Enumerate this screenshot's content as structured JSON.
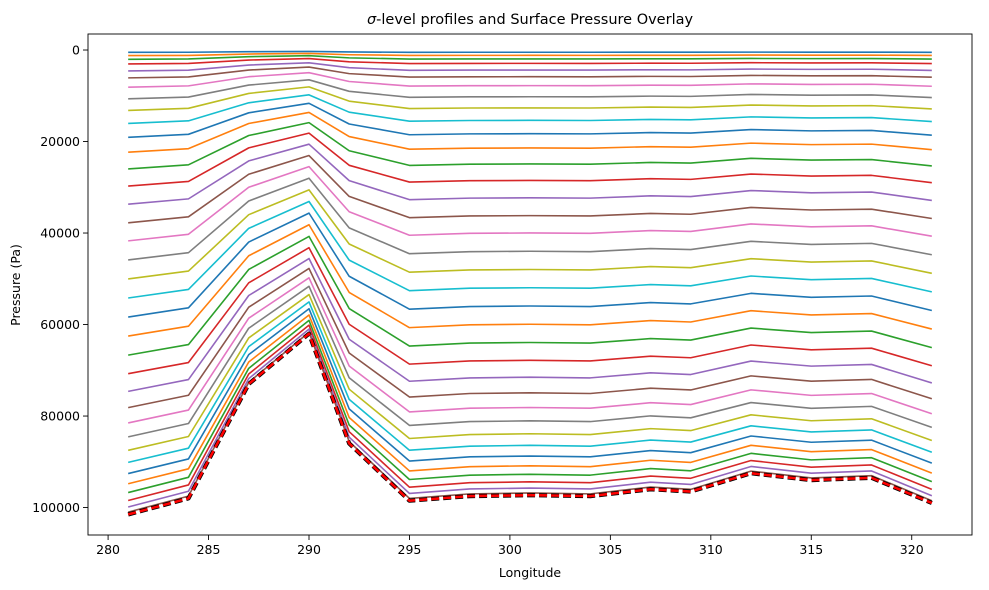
{
  "chart_data": {
    "type": "line",
    "title_symbol": "σ",
    "title_rest": "-level profiles and Surface Pressure Overlay",
    "xlabel": "Longitude",
    "ylabel": "Pressure (Pa)",
    "xlim": [
      279,
      323
    ],
    "ylim": [
      106000,
      -3500
    ],
    "y_inverted": true,
    "grid": false,
    "x_ticks": [
      280,
      285,
      290,
      295,
      300,
      305,
      310,
      315,
      320
    ],
    "y_ticks": [
      0,
      20000,
      40000,
      60000,
      80000,
      100000
    ],
    "x": [
      281,
      284,
      287,
      290,
      292,
      295,
      298,
      301,
      304,
      307,
      309,
      312,
      315,
      318,
      321
    ],
    "surface_pressure": [
      101500,
      98000,
      73000,
      62000,
      86000,
      98500,
      97500,
      97300,
      97500,
      96000,
      96500,
      92500,
      94000,
      93500,
      99000
    ],
    "sigma": [
      0.005,
      0.012,
      0.02,
      0.03,
      0.045,
      0.06,
      0.08,
      0.105,
      0.13,
      0.158,
      0.188,
      0.22,
      0.256,
      0.293,
      0.332,
      0.372,
      0.411,
      0.452,
      0.493,
      0.534,
      0.575,
      0.616,
      0.657,
      0.697,
      0.735,
      0.77,
      0.803,
      0.833,
      0.862,
      0.888,
      0.912,
      0.934,
      0.953,
      0.97,
      0.984,
      0.995
    ],
    "colors": [
      "#1f77b4",
      "#ff7f0e",
      "#2ca02c",
      "#d62728",
      "#9467bd",
      "#8c564b",
      "#e377c2",
      "#7f7f7f",
      "#bcbd22",
      "#17becf"
    ],
    "surface_style": {
      "color": "#ff0000",
      "dash": "dashed",
      "under_color": "#000000"
    }
  }
}
